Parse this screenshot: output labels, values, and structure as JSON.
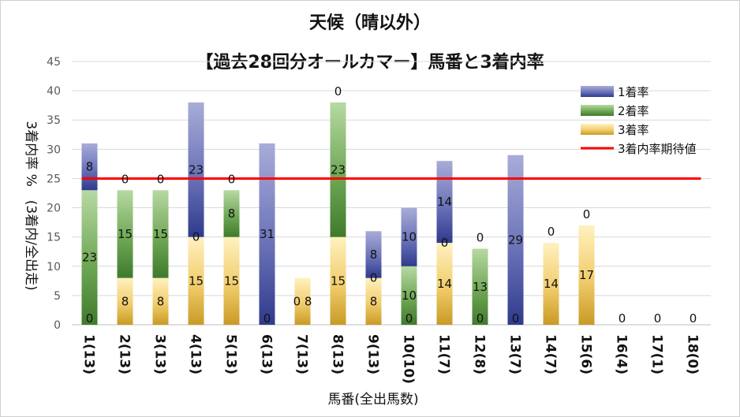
{
  "chart_data": {
    "type": "bar",
    "stacked": true,
    "title": "天候（晴以外）",
    "subtitle": "【過去28回分オールカマー】馬番と3着内率",
    "xlabel": "馬番(全出馬数)",
    "ylabel": "3着内率 %　(3着内/全出走)",
    "ylim": [
      0,
      45
    ],
    "yticks": [
      "0",
      "5",
      "10",
      "15",
      "20",
      "25",
      "30",
      "35",
      "40",
      "45"
    ],
    "grid": true,
    "legend_position": "top-right",
    "categories": [
      "1(13)",
      "2(13)",
      "3(13)",
      "4(13)",
      "5(13)",
      "6(13)",
      "7(13)",
      "8(13)",
      "9(13)",
      "10(10)",
      "11(7)",
      "12(8)",
      "13(7)",
      "14(7)",
      "15(6)",
      "16(4)",
      "17(1)",
      "18(0)"
    ],
    "series": [
      {
        "name": "1着率",
        "color": "#3a4a9c",
        "values": [
          8,
          0,
          0,
          23,
          0,
          31,
          0,
          0,
          8,
          10,
          14,
          0,
          29,
          0,
          0,
          0,
          0,
          0
        ]
      },
      {
        "name": "2着率",
        "color": "#4f8a3c",
        "values": [
          23,
          15,
          15,
          0,
          8,
          0,
          0,
          23,
          0,
          10,
          0,
          13,
          0,
          0,
          0,
          0,
          0,
          0
        ]
      },
      {
        "name": "3着率",
        "color": "#d4a52a",
        "values": [
          0,
          8,
          8,
          15,
          15,
          0,
          8,
          15,
          8,
          0,
          14,
          0,
          0,
          14,
          17,
          0,
          0,
          0
        ]
      }
    ],
    "data_labels": [
      [
        "8",
        "23",
        "0"
      ],
      [
        "0",
        "15",
        "8"
      ],
      [
        "0",
        "15",
        "8"
      ],
      [
        "23",
        "0",
        "15"
      ],
      [
        "0",
        "8",
        "15"
      ],
      [
        "31",
        "",
        "0"
      ],
      [
        "",
        "",
        "0 8"
      ],
      [
        "0",
        "23",
        "15"
      ],
      [
        "8",
        "0",
        "8"
      ],
      [
        "10",
        "10",
        "0"
      ],
      [
        "14",
        "0",
        "14"
      ],
      [
        "0",
        "13",
        "0"
      ],
      [
        "29",
        "",
        "0"
      ],
      [
        "0",
        "",
        "14"
      ],
      [
        "0",
        "",
        "17"
      ],
      [
        "0",
        "",
        ""
      ],
      [
        "0",
        "",
        ""
      ],
      [
        "0",
        "",
        ""
      ]
    ],
    "reference_line": {
      "name": "3着内率期待値",
      "value": 25,
      "color": "#ff0000"
    }
  }
}
